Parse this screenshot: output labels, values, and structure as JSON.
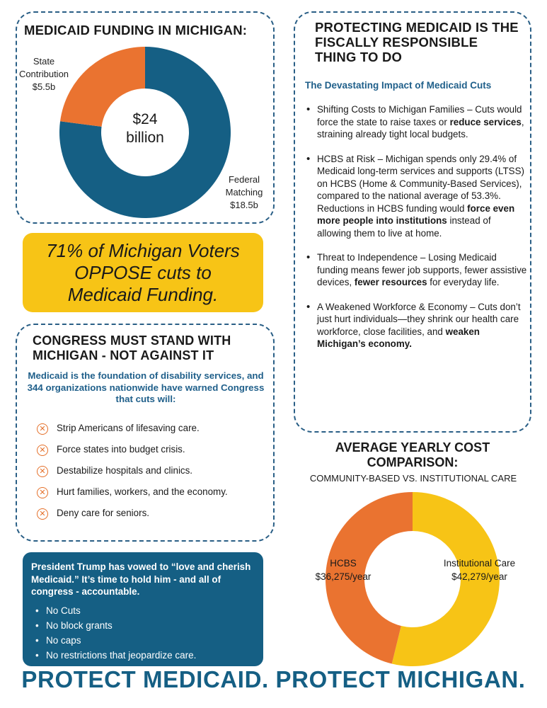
{
  "funding": {
    "title": "MEDICAID FUNDING IN MICHIGAN:",
    "center_line1": "$24",
    "center_line2": "billion",
    "state_label": [
      "State",
      "Contribution",
      "$5.5b"
    ],
    "federal_label": [
      "Federal",
      "Matching",
      "$18.5b"
    ]
  },
  "oppose": {
    "text": "71% of Michigan Voters OPPOSE cuts to Medicaid Funding."
  },
  "protect": {
    "title": "PROTECTING MEDICAID IS THE FISCALLY RESPONSIBLE THING TO DO",
    "subheading": "The Devastating Impact of Medicaid Cuts",
    "items": [
      {
        "before": "Shifting Costs to Michigan Families – Cuts would force the state to raise taxes or ",
        "bold": "reduce services",
        "after": ", straining already tight local budgets."
      },
      {
        "before": "HCBS at Risk – Michigan spends only 29.4% of Medicaid long-term services and supports (LTSS) on HCBS (Home & Community-Based Services), compared to the national average of 53.3%. Reductions in HCBS funding would ",
        "bold": "force even more people into institutions",
        "after": " instead of allowing them to live at home."
      },
      {
        "before": "Threat to Independence – Losing Medicaid funding means fewer job supports, fewer assistive devices, ",
        "bold": "fewer resources",
        "after": " for everyday life."
      },
      {
        "before": "A Weakened Workforce & Economy – Cuts don’t just hurt individuals—they shrink our health care workforce, close facilities, and ",
        "bold": "weaken Michigan’s economy.",
        "after": ""
      }
    ]
  },
  "congress": {
    "title": "CONGRESS MUST STAND WITH MICHIGAN - NOT AGAINST IT",
    "subtitle": "Medicaid is the foundation of disability services, and 344 organizations nationwide have warned Congress that cuts will:",
    "items": [
      "Strip Americans of lifesaving care.",
      "Force states into budget crisis.",
      "Destabilize hospitals and clinics.",
      "Hurt families, workers, and the economy.",
      "Deny care for seniors."
    ]
  },
  "trump": {
    "text": "President Trump has vowed to “love and cherish Medicaid.” It’s time to hold him - and all of congress - accountable.",
    "items": [
      "No Cuts",
      "No block grants",
      "No caps",
      "No restrictions that jeopardize care."
    ]
  },
  "cost": {
    "title": "AVERAGE YEARLY COST COMPARISON:",
    "subtitle": "COMMUNITY-BASED VS. INSTITUTIONAL CARE",
    "hcbs_label": [
      "HCBS",
      "$36,275/year"
    ],
    "inst_label": [
      "Institutional Care",
      "$42,279/year"
    ]
  },
  "footer": "PROTECT MEDICAID. PROTECT MICHIGAN.",
  "chart_data": [
    {
      "type": "pie",
      "categories": [
        "State Contribution",
        "Federal Matching"
      ],
      "values": [
        5.5,
        18.5
      ],
      "units": "billion USD",
      "colors": [
        "#ea7330",
        "#155f84"
      ],
      "title": "MEDICAID FUNDING IN MICHIGAN:"
    },
    {
      "type": "pie",
      "categories": [
        "HCBS",
        "Institutional Care"
      ],
      "values": [
        36275,
        42279
      ],
      "units": "USD/year",
      "colors": [
        "#ea7330",
        "#f7c416"
      ],
      "title": "AVERAGE YEARLY COST COMPARISON:"
    }
  ]
}
